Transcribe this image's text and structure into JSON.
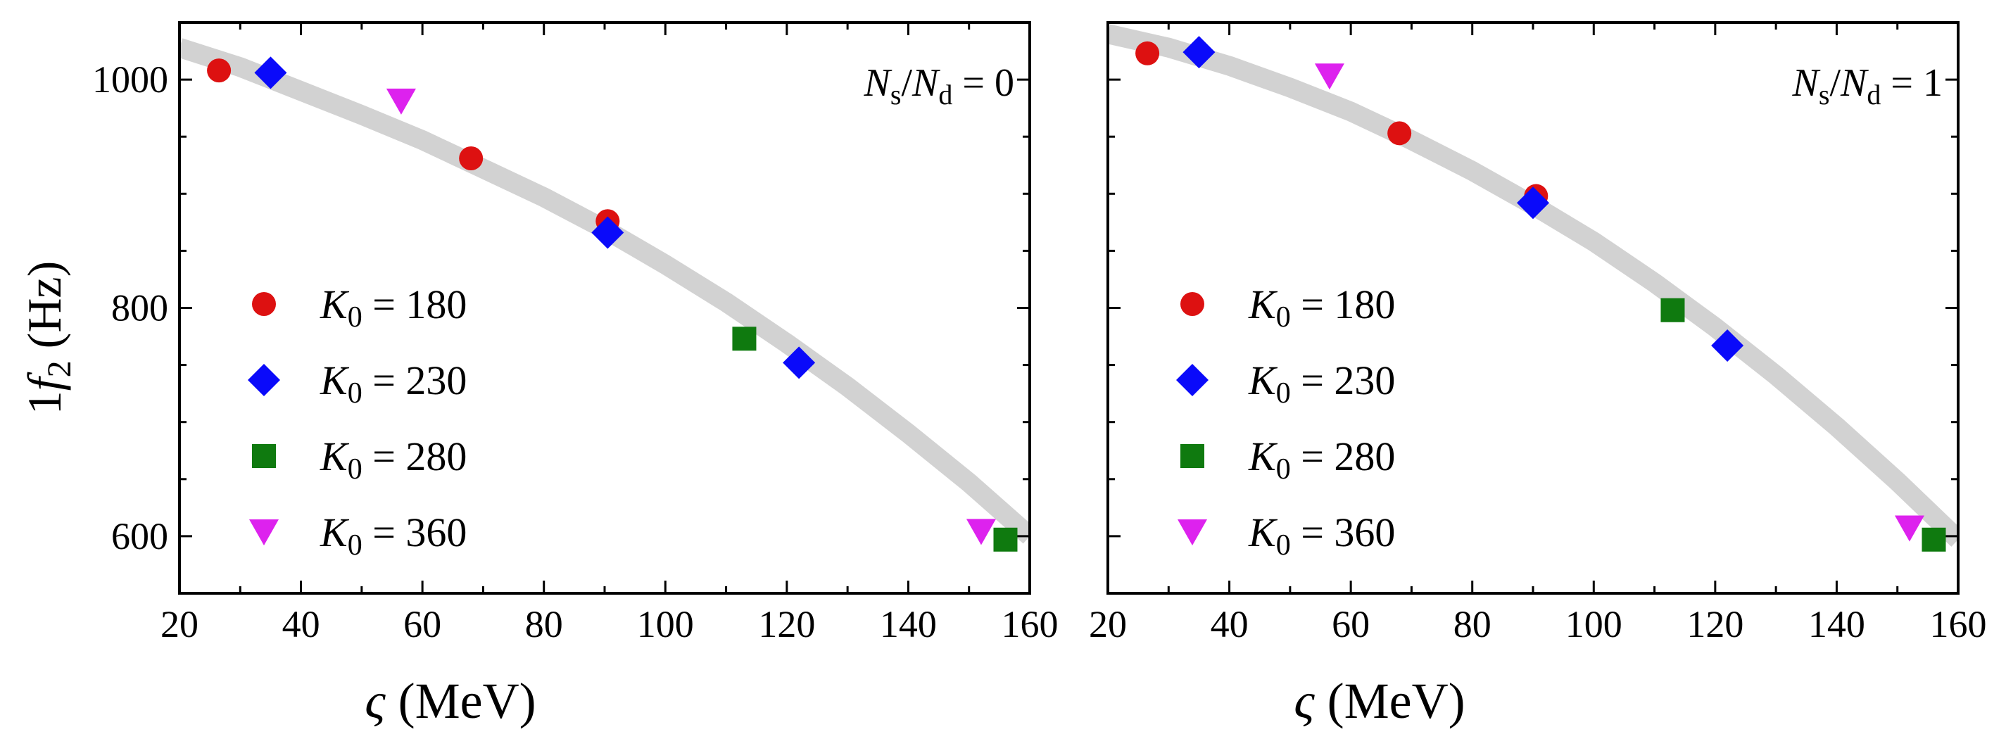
{
  "figure": {
    "ylabel": {
      "prefix": "1",
      "var": "f",
      "sub": "2",
      "unit": " (Hz)"
    },
    "xlabel": {
      "var": "ς",
      "unit": " (MeV)"
    }
  },
  "chart_data": [
    {
      "type": "scatter",
      "annotation": {
        "n1": "N",
        "s1": "s",
        "slash": "/",
        "n2": "N",
        "s2": "d",
        "eq": " = 0"
      },
      "xlim": [
        20,
        160
      ],
      "ylim": [
        550,
        1050
      ],
      "xticks": [
        "20",
        "40",
        "60",
        "80",
        "100",
        "120",
        "140",
        "160"
      ],
      "yticks": [
        "600",
        "800",
        "1000"
      ],
      "xtick_values": [
        20,
        40,
        60,
        80,
        100,
        120,
        140,
        160
      ],
      "ytick_values": [
        600,
        800,
        1000
      ],
      "fit_curve": {
        "x": [
          20,
          30,
          40,
          50,
          60,
          70,
          80,
          90,
          100,
          110,
          120,
          130,
          140,
          150,
          160
        ],
        "y": [
          1028,
          1011,
          990,
          969,
          947,
          922,
          897,
          869,
          838,
          805,
          769,
          731,
          690,
          647,
          600
        ]
      },
      "series": [
        {
          "name": "K0 = 180",
          "label": {
            "v": "K",
            "s": "0",
            "r": " = 180"
          },
          "marker": "circle",
          "color": "#dd1111",
          "x": [
            26.5,
            68,
            90.5
          ],
          "y": [
            1008,
            931,
            876
          ]
        },
        {
          "name": "K0 = 230",
          "label": {
            "v": "K",
            "s": "0",
            "r": " = 230"
          },
          "marker": "diamond",
          "color": "#0a0afa",
          "x": [
            35,
            90.5,
            122
          ],
          "y": [
            1006,
            866,
            752
          ]
        },
        {
          "name": "K0 = 280",
          "label": {
            "v": "K",
            "s": "0",
            "r": " = 280"
          },
          "marker": "square",
          "color": "#0f7a0f",
          "x": [
            113,
            156
          ],
          "y": [
            773,
            597
          ]
        },
        {
          "name": "K0 = 360",
          "label": {
            "v": "K",
            "s": "0",
            "r": " = 360"
          },
          "marker": "triangle",
          "color": "#dd22ee",
          "x": [
            56.5,
            152
          ],
          "y": [
            981,
            604
          ]
        }
      ]
    },
    {
      "type": "scatter",
      "annotation": {
        "n1": "N",
        "s1": "s",
        "slash": "/",
        "n2": "N",
        "s2": "d",
        "eq": " = 1"
      },
      "xlim": [
        20,
        160
      ],
      "ylim": [
        550,
        1050
      ],
      "xticks": [
        "20",
        "40",
        "60",
        "80",
        "100",
        "120",
        "140",
        "160"
      ],
      "yticks": [],
      "xtick_values": [
        20,
        40,
        60,
        80,
        100,
        120,
        140,
        160
      ],
      "ytick_values": [
        600,
        800,
        1000
      ],
      "fit_curve": {
        "x": [
          20,
          30,
          40,
          50,
          60,
          70,
          80,
          90,
          100,
          110,
          120,
          130,
          140,
          150,
          160
        ],
        "y": [
          1040,
          1028,
          1012,
          993,
          972,
          947,
          920,
          890,
          858,
          822,
          783,
          741,
          696,
          648,
          597
        ]
      },
      "series": [
        {
          "name": "K0 = 180",
          "label": {
            "v": "K",
            "s": "0",
            "r": " = 180"
          },
          "marker": "circle",
          "color": "#dd1111",
          "x": [
            26.5,
            68,
            90.5
          ],
          "y": [
            1023,
            953,
            898
          ]
        },
        {
          "name": "K0 = 230",
          "label": {
            "v": "K",
            "s": "0",
            "r": " = 230"
          },
          "marker": "diamond",
          "color": "#0a0afa",
          "x": [
            35,
            90,
            122
          ],
          "y": [
            1024,
            892,
            767
          ]
        },
        {
          "name": "K0 = 280",
          "label": {
            "v": "K",
            "s": "0",
            "r": " = 280"
          },
          "marker": "square",
          "color": "#0f7a0f",
          "x": [
            113,
            156
          ],
          "y": [
            798,
            597
          ]
        },
        {
          "name": "K0 = 360",
          "label": {
            "v": "K",
            "s": "0",
            "r": " = 360"
          },
          "marker": "triangle",
          "color": "#dd22ee",
          "x": [
            56.5,
            152
          ],
          "y": [
            1003,
            607
          ]
        }
      ]
    }
  ]
}
